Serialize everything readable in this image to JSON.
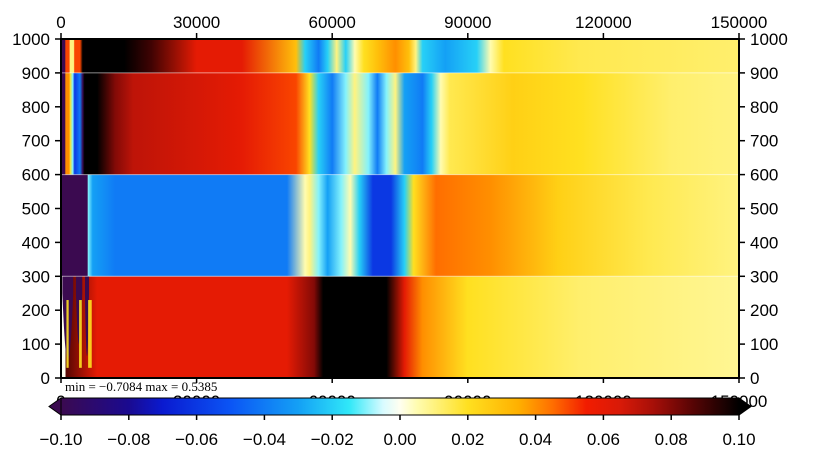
{
  "chart_data": {
    "type": "heatmap",
    "title": "",
    "xlabel": "",
    "ylabel": "",
    "xlim": [
      0,
      150000
    ],
    "ylim": [
      0,
      1000
    ],
    "x_ticks": [
      "0",
      "30000",
      "60000",
      "90000",
      "120000",
      "150000"
    ],
    "y_ticks": [
      "0",
      "100",
      "200",
      "300",
      "400",
      "500",
      "600",
      "700",
      "800",
      "900",
      "1000"
    ],
    "stats_text": "min = −0.7084    max = 0.5385",
    "layer_boundaries": [
      0,
      300,
      600,
      900,
      1000
    ],
    "layers": [
      {
        "y_range": [
          0,
          300
        ],
        "stops": [
          [
            0,
            0.09
          ],
          [
            8000,
            0.06
          ],
          [
            50000,
            0.06
          ],
          [
            56000,
            0.08
          ],
          [
            58000,
            0.1
          ],
          [
            72000,
            0.1
          ],
          [
            76000,
            0.06
          ],
          [
            80000,
            0.04
          ],
          [
            90000,
            0.02
          ],
          [
            115000,
            0.012
          ],
          [
            150000,
            0.008
          ]
        ]
      },
      {
        "y_range": [
          300,
          600
        ],
        "stops": [
          [
            0,
            -0.1
          ],
          [
            5800,
            -0.1
          ],
          [
            6000,
            -0.01
          ],
          [
            7000,
            -0.03
          ],
          [
            12000,
            -0.04
          ],
          [
            50000,
            -0.04
          ],
          [
            54000,
            0.005
          ],
          [
            55000,
            0.01
          ],
          [
            57000,
            -0.01
          ],
          [
            59000,
            -0.03
          ],
          [
            62000,
            -0.01
          ],
          [
            64000,
            0.005
          ],
          [
            66000,
            -0.02
          ],
          [
            69000,
            -0.06
          ],
          [
            73000,
            -0.06
          ],
          [
            76000,
            -0.02
          ],
          [
            78000,
            0.02
          ],
          [
            83000,
            0.045
          ],
          [
            95000,
            0.04
          ],
          [
            110000,
            0.025
          ],
          [
            130000,
            0.015
          ],
          [
            150000,
            0.01
          ]
        ]
      },
      {
        "y_range": [
          600,
          900
        ],
        "stops": [
          [
            0,
            -0.1
          ],
          [
            900,
            -0.1
          ],
          [
            1000,
            0.04
          ],
          [
            1800,
            0.04
          ],
          [
            2000,
            0.02
          ],
          [
            2600,
            -0.01
          ],
          [
            3000,
            -0.06
          ],
          [
            4200,
            -0.04
          ],
          [
            4800,
            -0.1
          ],
          [
            5200,
            0.1
          ],
          [
            8000,
            0.1
          ],
          [
            12000,
            0.08
          ],
          [
            16000,
            0.07
          ],
          [
            40000,
            0.06
          ],
          [
            52000,
            0.05
          ],
          [
            55000,
            0.02
          ],
          [
            57000,
            -0.02
          ],
          [
            60000,
            -0.04
          ],
          [
            63000,
            -0.01
          ],
          [
            65000,
            0.01
          ],
          [
            68000,
            -0.01
          ],
          [
            70000,
            -0.04
          ],
          [
            72000,
            -0.01
          ],
          [
            74000,
            0.01
          ],
          [
            76000,
            -0.03
          ],
          [
            80000,
            -0.04
          ],
          [
            82000,
            -0.02
          ],
          [
            84000,
            0.005
          ],
          [
            86000,
            0.015
          ],
          [
            100000,
            0.025
          ],
          [
            115000,
            0.02
          ],
          [
            135000,
            0.012
          ],
          [
            150000,
            0.01
          ]
        ]
      },
      {
        "y_range": [
          900,
          1000
        ],
        "stops": [
          [
            0,
            -0.1
          ],
          [
            900,
            -0.1
          ],
          [
            1000,
            0.05
          ],
          [
            1800,
            0.05
          ],
          [
            2000,
            0.01
          ],
          [
            2800,
            0.01
          ],
          [
            3000,
            0.05
          ],
          [
            4200,
            0.05
          ],
          [
            4800,
            0.1
          ],
          [
            14000,
            0.1
          ],
          [
            20000,
            0.09
          ],
          [
            30000,
            0.06
          ],
          [
            40000,
            0.06
          ],
          [
            52000,
            0.03
          ],
          [
            54000,
            -0.02
          ],
          [
            57000,
            -0.04
          ],
          [
            59000,
            -0.02
          ],
          [
            61000,
            0.01
          ],
          [
            63000,
            -0.02
          ],
          [
            65000,
            0.005
          ],
          [
            67000,
            0.02
          ],
          [
            70000,
            0.03
          ],
          [
            74000,
            0.04
          ],
          [
            77000,
            0.03
          ],
          [
            78500,
            0.01
          ],
          [
            80000,
            -0.02
          ],
          [
            85000,
            -0.03
          ],
          [
            92000,
            -0.02
          ],
          [
            95000,
            0.005
          ],
          [
            98000,
            0.02
          ],
          [
            115000,
            0.015
          ],
          [
            150000,
            0.012
          ]
        ]
      }
    ],
    "colorbar": {
      "min": -0.1,
      "max": 0.1,
      "ticks": [
        "−0.10",
        "−0.08",
        "−0.06",
        "−0.04",
        "−0.02",
        "0.00",
        "0.02",
        "0.04",
        "0.06",
        "0.08",
        "0.10"
      ],
      "stops": [
        [
          -0.1,
          "#3b0a50"
        ],
        [
          -0.08,
          "#1a0a90"
        ],
        [
          -0.07,
          "#0a1ad0"
        ],
        [
          -0.05,
          "#0b55f5"
        ],
        [
          -0.03,
          "#14a0f5"
        ],
        [
          -0.015,
          "#30e8f8"
        ],
        [
          -0.005,
          "#d8fbff"
        ],
        [
          0.0,
          "#fffff0"
        ],
        [
          0.005,
          "#fffcb0"
        ],
        [
          0.02,
          "#ffe020"
        ],
        [
          0.035,
          "#ffb000"
        ],
        [
          0.045,
          "#ff6e00"
        ],
        [
          0.055,
          "#f21c00"
        ],
        [
          0.065,
          "#d81a08"
        ],
        [
          0.075,
          "#a50f08"
        ],
        [
          0.085,
          "#600505"
        ],
        [
          0.1,
          "#000000"
        ]
      ]
    }
  }
}
